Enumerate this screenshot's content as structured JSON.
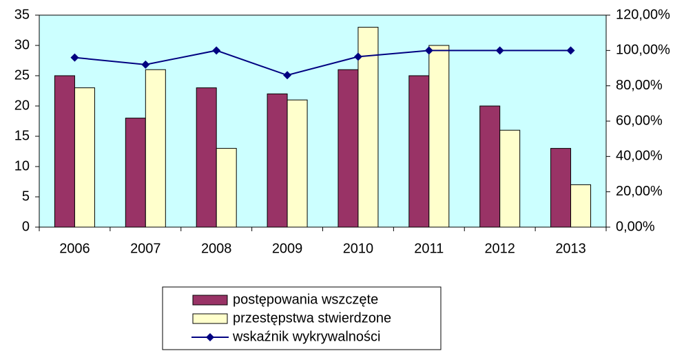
{
  "chart_data": {
    "type": "bar_line",
    "categories": [
      "2006",
      "2007",
      "2008",
      "2009",
      "2010",
      "2011",
      "2012",
      "2013"
    ],
    "series": [
      {
        "name": "postępowania wszczęte",
        "type": "bar",
        "color": "#993366",
        "values": [
          25,
          18,
          23,
          22,
          26,
          25,
          20,
          13
        ]
      },
      {
        "name": "przestępstwa stwierdzone",
        "type": "bar",
        "color": "#ffffcc",
        "values": [
          23,
          26,
          13,
          21,
          33,
          30,
          16,
          7
        ]
      },
      {
        "name": "wskaźnik wykrywalności",
        "type": "line",
        "axis": "y2",
        "color": "#000080",
        "values": [
          96,
          92,
          100,
          86,
          96.5,
          100,
          100,
          100
        ]
      }
    ],
    "ylim": [
      0,
      35
    ],
    "yticks": [
      0,
      5,
      10,
      15,
      20,
      25,
      30,
      35
    ],
    "y2lim": [
      0,
      120
    ],
    "y2ticks": [
      {
        "value": 0,
        "label": "0,00%"
      },
      {
        "value": 20,
        "label": "20,00%"
      },
      {
        "value": 40,
        "label": "40,00%"
      },
      {
        "value": 60,
        "label": "60,00%"
      },
      {
        "value": 80,
        "label": "80,00%"
      },
      {
        "value": 100,
        "label": "100,00%"
      },
      {
        "value": 120,
        "label": "120,00%"
      }
    ],
    "plot_background": "#ccffff"
  }
}
